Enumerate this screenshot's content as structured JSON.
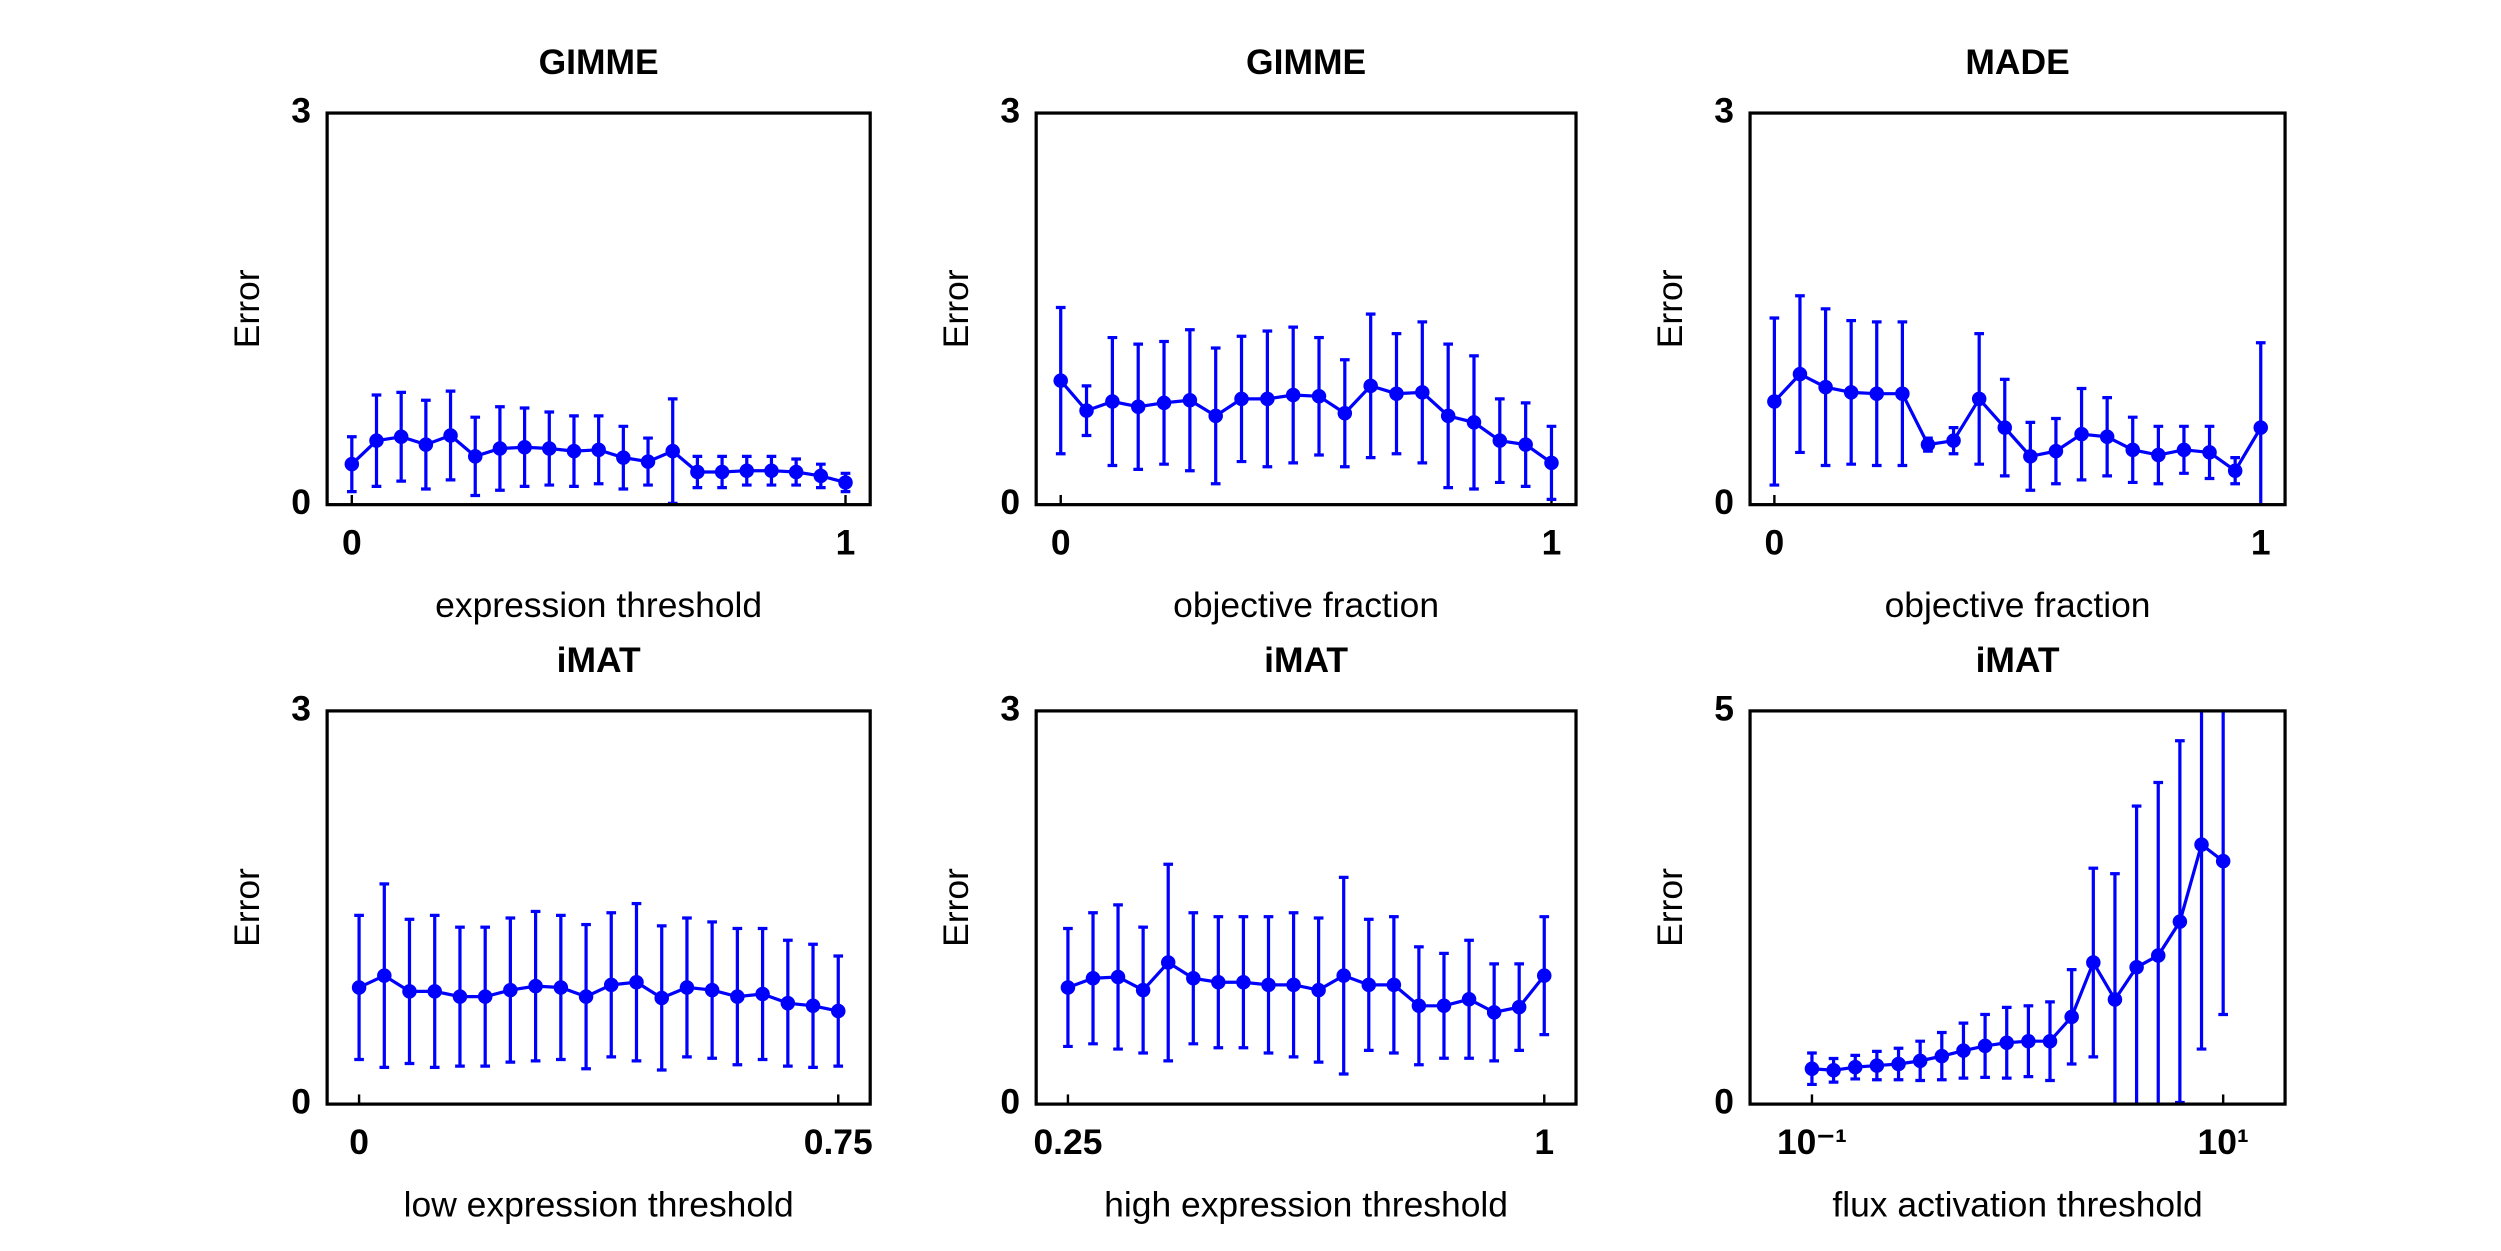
{
  "chart_data": [
    {
      "type": "errorbar",
      "title": "GIMME",
      "xlabel": "expression threshold",
      "ylabel": "Error",
      "color": "#0000ff",
      "x": [
        0,
        0.05,
        0.1,
        0.15,
        0.2,
        0.25,
        0.3,
        0.35,
        0.4,
        0.45,
        0.5,
        0.55,
        0.6,
        0.65,
        0.7,
        0.75,
        0.8,
        0.85,
        0.9,
        0.95,
        1
      ],
      "values": [
        0.31,
        0.49,
        0.52,
        0.46,
        0.53,
        0.37,
        0.43,
        0.44,
        0.43,
        0.41,
        0.42,
        0.36,
        0.33,
        0.41,
        0.25,
        0.25,
        0.26,
        0.26,
        0.25,
        0.22,
        0.17
      ],
      "errors": [
        0.21,
        0.35,
        0.34,
        0.34,
        0.34,
        0.3,
        0.32,
        0.3,
        0.28,
        0.27,
        0.26,
        0.24,
        0.18,
        0.4,
        0.12,
        0.12,
        0.11,
        0.11,
        0.1,
        0.09,
        0.07
      ],
      "xlim": [
        -0.05,
        1.05
      ],
      "ylim": [
        0,
        3
      ],
      "xticks": [
        0,
        1
      ],
      "yticks": [
        0,
        3
      ]
    },
    {
      "type": "errorbar",
      "title": "GIMME",
      "xlabel": "objective fraction",
      "ylabel": "Error",
      "color": "#0000ff",
      "x": [
        0,
        0.0526,
        0.1053,
        0.1579,
        0.2105,
        0.2632,
        0.3158,
        0.3684,
        0.4211,
        0.4737,
        0.5263,
        0.5789,
        0.6316,
        0.6842,
        0.7368,
        0.7895,
        0.8421,
        0.8947,
        0.9474,
        1
      ],
      "values": [
        0.95,
        0.72,
        0.79,
        0.75,
        0.78,
        0.8,
        0.68,
        0.81,
        0.81,
        0.84,
        0.83,
        0.7,
        0.91,
        0.85,
        0.86,
        0.68,
        0.63,
        0.49,
        0.46,
        0.32
      ],
      "errors": [
        0.56,
        0.19,
        0.49,
        0.48,
        0.47,
        0.54,
        0.52,
        0.48,
        0.52,
        0.52,
        0.45,
        0.41,
        0.55,
        0.46,
        0.54,
        0.55,
        0.51,
        0.32,
        0.32,
        0.28
      ],
      "xlim": [
        -0.05,
        1.05
      ],
      "ylim": [
        0,
        3
      ],
      "xticks": [
        0,
        1
      ],
      "yticks": [
        0,
        3
      ]
    },
    {
      "type": "errorbar",
      "title": "MADE",
      "xlabel": "objective fraction",
      "ylabel": "Error",
      "color": "#0000ff",
      "x": [
        0,
        0.0526,
        0.1053,
        0.1579,
        0.2105,
        0.2632,
        0.3158,
        0.3684,
        0.4211,
        0.4737,
        0.5263,
        0.5789,
        0.6316,
        0.6842,
        0.7368,
        0.7895,
        0.8421,
        0.8947,
        0.9474,
        1
      ],
      "values": [
        0.79,
        1.0,
        0.9,
        0.86,
        0.85,
        0.85,
        0.46,
        0.49,
        0.81,
        0.59,
        0.37,
        0.41,
        0.54,
        0.52,
        0.42,
        0.38,
        0.42,
        0.4,
        0.26,
        0.59
      ],
      "errors": [
        0.64,
        0.6,
        0.6,
        0.55,
        0.55,
        0.55,
        0.05,
        0.1,
        0.5,
        0.37,
        0.26,
        0.25,
        0.35,
        0.3,
        0.25,
        0.22,
        0.18,
        0.2,
        0.1,
        0.65
      ],
      "xlim": [
        -0.05,
        1.05
      ],
      "ylim": [
        0,
        3
      ],
      "xticks": [
        0,
        1
      ],
      "yticks": [
        0,
        3
      ]
    },
    {
      "type": "errorbar",
      "title": "iMAT",
      "xlabel": "low expression threshold",
      "ylabel": "Error",
      "color": "#0000ff",
      "x": [
        0,
        0.0395,
        0.0789,
        0.1184,
        0.1579,
        0.1974,
        0.2368,
        0.2763,
        0.3158,
        0.3553,
        0.3947,
        0.4342,
        0.4737,
        0.5132,
        0.5526,
        0.5921,
        0.6316,
        0.6711,
        0.7105,
        0.75
      ],
      "values": [
        0.89,
        0.98,
        0.86,
        0.86,
        0.82,
        0.82,
        0.87,
        0.9,
        0.89,
        0.82,
        0.91,
        0.93,
        0.81,
        0.89,
        0.87,
        0.82,
        0.84,
        0.77,
        0.75,
        0.71
      ],
      "errors": [
        0.55,
        0.7,
        0.55,
        0.58,
        0.53,
        0.53,
        0.55,
        0.57,
        0.55,
        0.55,
        0.55,
        0.6,
        0.55,
        0.53,
        0.52,
        0.52,
        0.5,
        0.48,
        0.47,
        0.42
      ],
      "xlim": [
        -0.05,
        0.8
      ],
      "ylim": [
        0,
        3
      ],
      "xticks": [
        0,
        0.75
      ],
      "yticks": [
        0,
        3
      ]
    },
    {
      "type": "errorbar",
      "title": "iMAT",
      "xlabel": "high expression threshold",
      "ylabel": "Error",
      "color": "#0000ff",
      "x": [
        0.25,
        0.2895,
        0.3289,
        0.3684,
        0.4079,
        0.4474,
        0.4868,
        0.5263,
        0.5658,
        0.6053,
        0.6447,
        0.6842,
        0.7237,
        0.7632,
        0.8026,
        0.8421,
        0.8816,
        0.9211,
        0.9605,
        1
      ],
      "values": [
        0.89,
        0.96,
        0.97,
        0.87,
        1.08,
        0.96,
        0.93,
        0.93,
        0.91,
        0.91,
        0.87,
        0.98,
        0.91,
        0.91,
        0.75,
        0.75,
        0.8,
        0.7,
        0.74,
        0.98
      ],
      "errors": [
        0.45,
        0.5,
        0.55,
        0.48,
        0.75,
        0.5,
        0.5,
        0.5,
        0.52,
        0.55,
        0.55,
        0.75,
        0.5,
        0.52,
        0.45,
        0.4,
        0.45,
        0.37,
        0.33,
        0.45
      ],
      "xlim": [
        0.2,
        1.05
      ],
      "ylim": [
        0,
        3
      ],
      "xticks": [
        0.25,
        1
      ],
      "yticks": [
        0,
        3
      ]
    },
    {
      "type": "errorbar",
      "title": "iMAT",
      "xlabel": "flux activation threshold",
      "ylabel": "Error",
      "color": "#0000ff",
      "xscale": "log",
      "x": [
        0.1,
        0.1274,
        0.1624,
        0.2069,
        0.2637,
        0.336,
        0.4281,
        0.5456,
        0.6952,
        0.8859,
        1.129,
        1.438,
        1.833,
        2.336,
        2.976,
        3.793,
        4.833,
        6.158,
        7.848,
        10
      ],
      "values": [
        0.45,
        0.43,
        0.47,
        0.49,
        0.51,
        0.55,
        0.61,
        0.68,
        0.74,
        0.78,
        0.8,
        0.8,
        1.11,
        1.8,
        1.33,
        1.74,
        1.89,
        2.32,
        3.3,
        3.09
      ],
      "errors": [
        0.2,
        0.15,
        0.15,
        0.18,
        0.2,
        0.25,
        0.3,
        0.35,
        0.4,
        0.45,
        0.45,
        0.5,
        0.6,
        1.2,
        1.6,
        2.05,
        2.2,
        2.3,
        2.6,
        1.95
      ],
      "xlim": [
        0.05,
        20
      ],
      "ylim": [
        0,
        5
      ],
      "xticks": [
        {
          "value": 0.1,
          "label": "10⁻¹"
        },
        {
          "value": 10,
          "label": "10¹"
        }
      ],
      "yticks": [
        0,
        5
      ]
    }
  ]
}
